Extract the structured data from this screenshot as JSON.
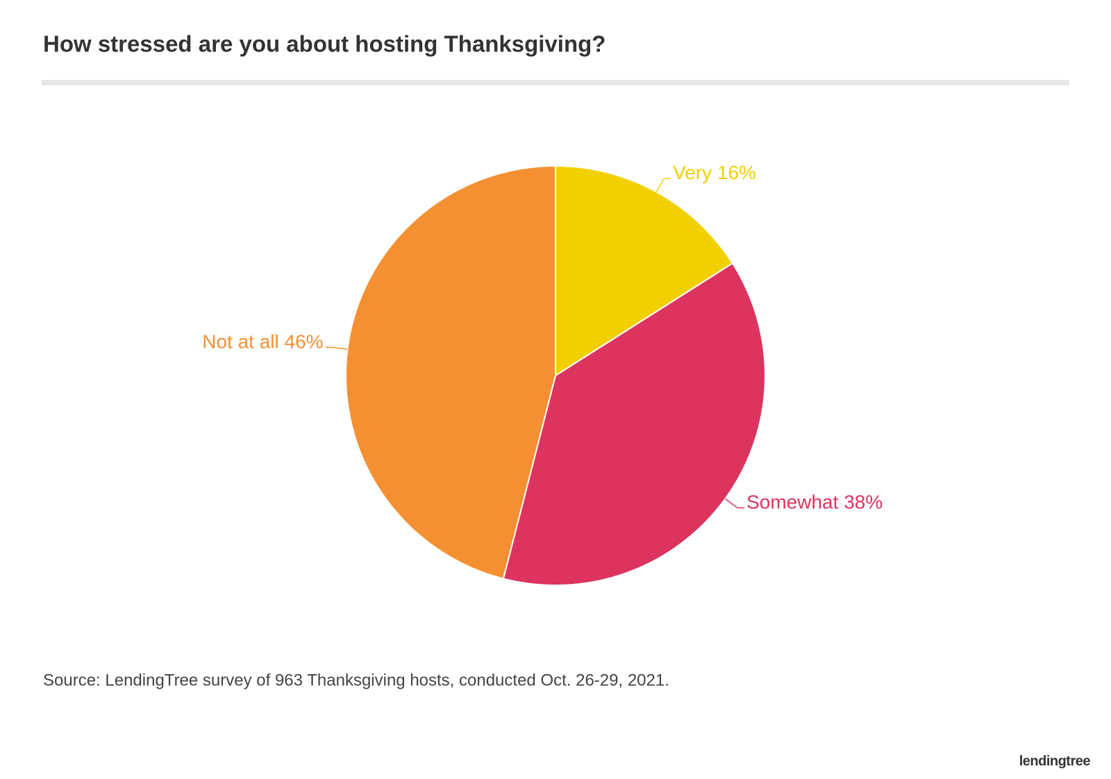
{
  "chart_data": {
    "type": "pie",
    "title": "How stressed are you about hosting Thanksgiving?",
    "categories": [
      "Very",
      "Somewhat",
      "Not at all"
    ],
    "values": [
      16,
      38,
      46
    ],
    "value_labels": [
      "16%",
      "38%",
      "46%"
    ],
    "colors": [
      "#f2d000",
      "#dc345e",
      "#f59032"
    ],
    "source": "Source: LendingTree survey of 963 Thanksgiving hosts, conducted Oct. 26-29, 2021.",
    "brand": "lendingtree"
  }
}
